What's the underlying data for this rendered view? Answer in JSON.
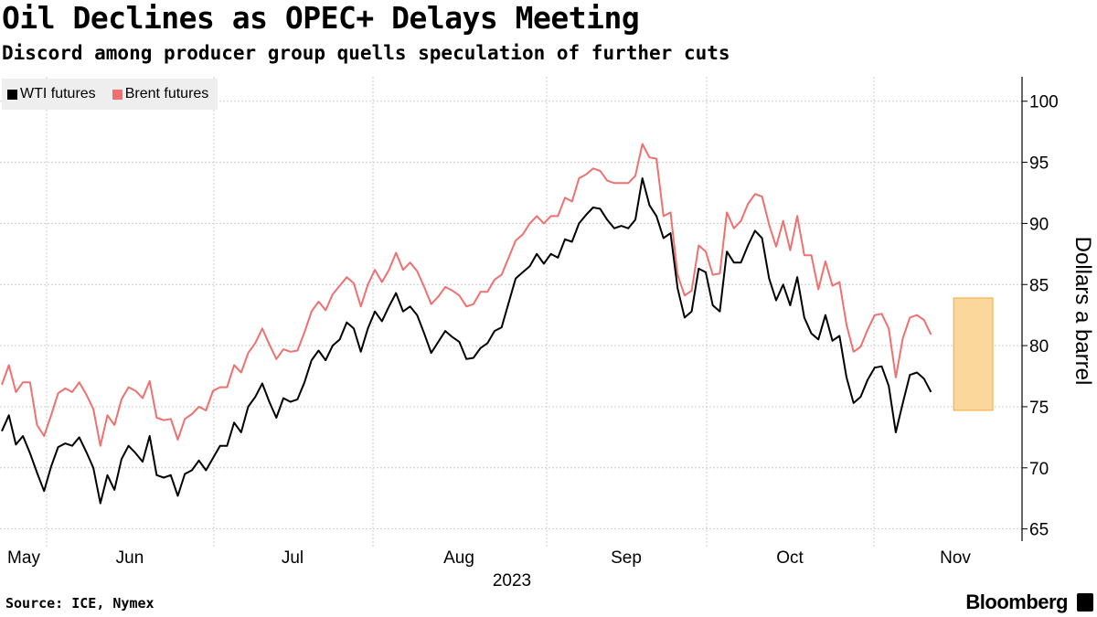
{
  "title": "Oil Declines as OPEC+ Delays Meeting",
  "subtitle": "Discord among producer group quells speculation of further cuts",
  "source": "Source: ICE, Nymex",
  "brand": "Bloomberg",
  "chart_data": {
    "type": "line",
    "title": "Oil Declines as OPEC+ Delays Meeting",
    "ylabel": "Dollars a barrel",
    "xlabel": "2023",
    "ylim": [
      64,
      102
    ],
    "yticks": [
      65,
      70,
      75,
      80,
      85,
      90,
      95,
      100
    ],
    "x_tick_labels": [
      "May",
      "Jun",
      "Jul",
      "Aug",
      "Sep",
      "Oct",
      "Nov"
    ],
    "year_label": "2023",
    "legend_position": "top-left",
    "colors": {
      "wti": "#000000",
      "brent": "#f07070",
      "highlight_fill": "#fbd79b",
      "highlight_stroke": "#f2a93b",
      "grid": "#cccccc"
    },
    "highlight": {
      "x_start": 136,
      "x_end": 140,
      "y_low": 74.7,
      "y_high": 83.9
    },
    "series": [
      {
        "name": "WTI futures",
        "values": [
          73.0,
          74.3,
          71.9,
          72.6,
          71.2,
          69.6,
          68.1,
          70.1,
          71.7,
          72.0,
          71.8,
          72.5,
          71.3,
          70.0,
          67.1,
          69.4,
          68.2,
          70.7,
          71.8,
          71.2,
          70.5,
          72.6,
          69.4,
          69.2,
          69.4,
          67.7,
          69.5,
          69.8,
          70.6,
          69.8,
          70.8,
          71.8,
          71.8,
          73.7,
          72.9,
          75.0,
          75.8,
          76.9,
          75.4,
          74.1,
          75.7,
          75.4,
          75.6,
          77.0,
          78.8,
          79.6,
          78.8,
          80.0,
          80.5,
          81.9,
          81.4,
          79.5,
          81.4,
          82.8,
          82.0,
          83.2,
          84.3,
          82.8,
          83.2,
          82.5,
          81.0,
          79.4,
          80.3,
          81.2,
          80.7,
          80.3,
          78.9,
          79.0,
          79.8,
          80.2,
          81.2,
          81.5,
          83.5,
          85.5,
          86.0,
          86.5,
          87.5,
          86.7,
          87.5,
          87.2,
          88.7,
          88.5,
          90.0,
          90.7,
          91.3,
          91.2,
          90.3,
          89.6,
          89.8,
          89.6,
          90.3,
          93.7,
          91.5,
          90.6,
          88.8,
          89.2,
          84.7,
          82.3,
          82.8,
          86.3,
          86.0,
          83.3,
          82.8,
          87.7,
          86.8,
          86.8,
          88.2,
          89.4,
          88.8,
          85.5,
          83.7,
          85.0,
          83.3,
          85.6,
          82.3,
          81.0,
          80.5,
          82.5,
          80.4,
          80.8,
          77.4,
          75.3,
          75.8,
          77.2,
          78.2,
          78.3,
          76.7,
          72.9,
          75.3,
          77.6,
          77.8,
          77.3,
          76.2
        ]
      },
      {
        "name": "Brent futures",
        "values": [
          76.8,
          78.4,
          76.2,
          77.0,
          77.0,
          73.5,
          72.6,
          74.3,
          76.1,
          76.5,
          76.2,
          77.0,
          76.0,
          74.8,
          71.8,
          74.3,
          73.5,
          75.6,
          76.6,
          76.3,
          75.7,
          77.1,
          74.1,
          73.9,
          74.0,
          72.3,
          74.0,
          74.4,
          75.0,
          74.7,
          76.3,
          76.6,
          76.6,
          78.4,
          77.8,
          79.4,
          80.2,
          81.4,
          80.1,
          78.9,
          79.7,
          79.5,
          79.6,
          81.1,
          82.8,
          83.6,
          82.9,
          84.2,
          84.9,
          85.6,
          85.1,
          83.2,
          85.0,
          86.2,
          85.2,
          86.2,
          87.6,
          86.2,
          86.8,
          86.1,
          84.8,
          83.4,
          84.0,
          84.8,
          84.5,
          84.1,
          83.2,
          83.4,
          84.4,
          84.4,
          85.4,
          85.8,
          87.2,
          88.6,
          89.1,
          90.0,
          90.6,
          90.0,
          90.6,
          90.6,
          92.1,
          91.8,
          93.7,
          94.0,
          94.5,
          94.3,
          93.5,
          93.3,
          93.3,
          93.3,
          93.9,
          96.5,
          95.4,
          95.3,
          90.6,
          90.9,
          85.8,
          84.1,
          84.5,
          88.2,
          87.7,
          85.8,
          85.9,
          90.9,
          89.6,
          90.2,
          91.6,
          92.4,
          92.2,
          89.9,
          88.1,
          90.2,
          87.8,
          90.6,
          87.4,
          87.4,
          84.6,
          86.9,
          84.9,
          85.2,
          81.7,
          79.5,
          79.9,
          81.3,
          82.5,
          82.6,
          81.4,
          77.4,
          80.6,
          82.3,
          82.5,
          82.1,
          80.9
        ]
      }
    ]
  }
}
